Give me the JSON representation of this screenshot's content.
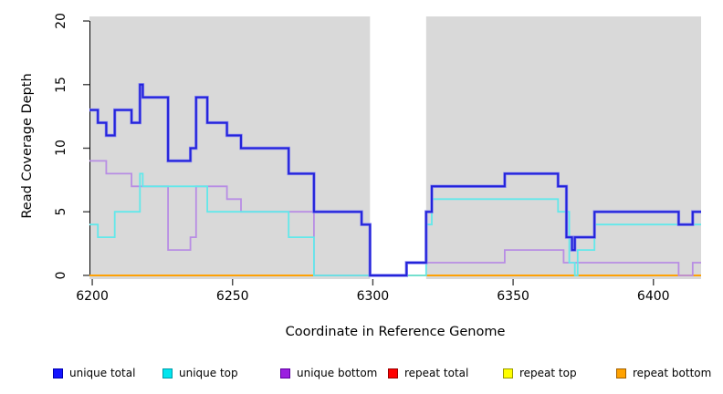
{
  "chart_data": {
    "type": "line",
    "subtype": "step",
    "title": "",
    "xlabel": "Coordinate in Reference Genome",
    "ylabel": "Read Coverage Depth",
    "xlim": [
      6199,
      6417
    ],
    "ylim": [
      -0.29,
      20.36
    ],
    "xticks": [
      6200,
      6250,
      6300,
      6350,
      6400
    ],
    "yticks": [
      0,
      5,
      10,
      15,
      20
    ],
    "grid": "off",
    "plot_bg": "#d9d9d9",
    "axis_color": "#000000",
    "tick_color": "#444444",
    "gap_region": {
      "from": 6299,
      "to": 6319,
      "color": "#ffffff"
    },
    "legend_position": "bottom",
    "series": [
      {
        "name": "unique total",
        "line_color": "#2323d9",
        "halo_color": "#8886f2",
        "legend_fill": "#1414ff",
        "legend_border": "#0000b0",
        "points": [
          [
            6199,
            13
          ],
          [
            6202,
            12
          ],
          [
            6205,
            11
          ],
          [
            6208,
            13
          ],
          [
            6214,
            12
          ],
          [
            6217,
            15
          ],
          [
            6218,
            14
          ],
          [
            6227,
            9
          ],
          [
            6235,
            10
          ],
          [
            6237,
            14
          ],
          [
            6241,
            12
          ],
          [
            6248,
            11
          ],
          [
            6253,
            10
          ],
          [
            6270,
            8
          ],
          [
            6279,
            5
          ],
          [
            6296,
            4
          ],
          [
            6299,
            0
          ],
          [
            6312,
            1
          ],
          [
            6319,
            5
          ],
          [
            6321,
            7
          ],
          [
            6347,
            8
          ],
          [
            6366,
            7
          ],
          [
            6369,
            3
          ],
          [
            6371,
            2
          ],
          [
            6372,
            3
          ],
          [
            6379,
            5
          ],
          [
            6409,
            4
          ],
          [
            6414,
            5
          ]
        ]
      },
      {
        "name": "unique top",
        "line_color": "#62e8ea",
        "legend_fill": "#00e5ee",
        "legend_border": "#009aa8",
        "points": [
          [
            6199,
            4
          ],
          [
            6202,
            3
          ],
          [
            6208,
            5
          ],
          [
            6217,
            8
          ],
          [
            6218,
            7
          ],
          [
            6241,
            5
          ],
          [
            6270,
            3
          ],
          [
            6279,
            0
          ],
          [
            6319,
            4
          ],
          [
            6321,
            6
          ],
          [
            6366,
            5
          ],
          [
            6370,
            1
          ],
          [
            6372,
            0
          ],
          [
            6373,
            2
          ],
          [
            6379,
            4
          ]
        ]
      },
      {
        "name": "unique bottom",
        "line_color": "#b88de4",
        "legend_fill": "#9b1fe0",
        "legend_border": "#5e00a0",
        "points": [
          [
            6199,
            9
          ],
          [
            6205,
            8
          ],
          [
            6214,
            7
          ],
          [
            6227,
            2
          ],
          [
            6235,
            3
          ],
          [
            6237,
            7
          ],
          [
            6248,
            6
          ],
          [
            6253,
            5
          ],
          [
            6279,
            0
          ],
          [
            6312,
            1
          ],
          [
            6347,
            2
          ],
          [
            6368,
            1
          ],
          [
            6409,
            0
          ],
          [
            6414,
            1
          ]
        ]
      },
      {
        "name": "repeat total",
        "line_color": "#dd0000",
        "legend_fill": "#ff0000",
        "legend_border": "#990000",
        "points": [
          [
            6199,
            0
          ]
        ]
      },
      {
        "name": "repeat top",
        "line_color": "#ffff33",
        "legend_fill": "#ffff00",
        "legend_border": "#999900",
        "points": [
          [
            6199,
            0
          ]
        ]
      },
      {
        "name": "repeat bottom",
        "line_color": "#ff9d00",
        "legend_fill": "#ffa200",
        "legend_border": "#a05f00",
        "points": [
          [
            6199,
            0
          ]
        ]
      }
    ]
  }
}
